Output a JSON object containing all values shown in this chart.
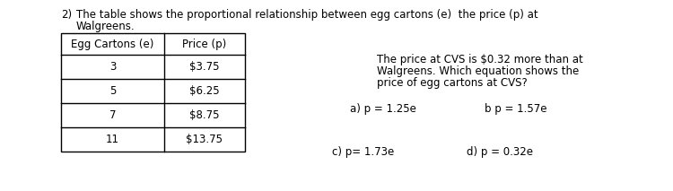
{
  "question_number": "2)",
  "intro_line1": "The table shows the proportional relationship between egg cartons (e)  the price (p) at",
  "intro_line2": "Walgreens.",
  "table_headers": [
    "Egg Cartons (e)",
    "Price (p)"
  ],
  "table_rows": [
    [
      "3",
      "$3.75"
    ],
    [
      "5",
      "$6.25"
    ],
    [
      "7",
      "$8.75"
    ],
    [
      "11",
      "$13.75"
    ]
  ],
  "side_text_line1": "The price at CVS is $0.32 more than at",
  "side_text_line2": "Walgreens. Which equation shows the",
  "side_text_line3": "price of egg cartons at CVS?",
  "option_a": "a) p = 1.25e",
  "option_b": "b p = 1.57e",
  "option_c": "c) p= 1.73e",
  "option_d": "d) p = 0.32e",
  "bg_color": "#ffffff",
  "table_bg": "#ffffff",
  "text_color": "#000000",
  "font_size": 8.5
}
